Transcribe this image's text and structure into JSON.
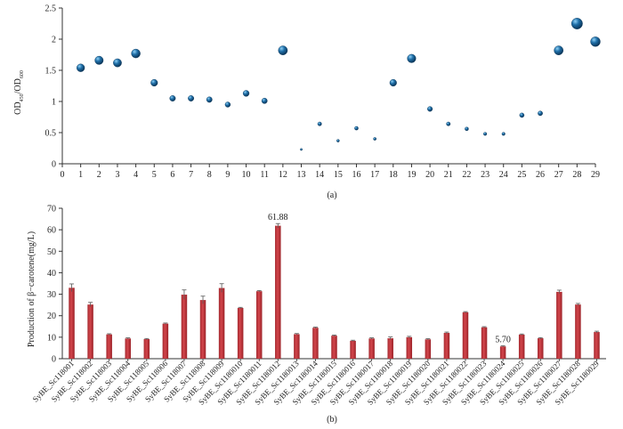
{
  "chart_data": [
    {
      "type": "scatter",
      "panel_label": "(a)",
      "ylabel_main": "OD",
      "ylabel_sub1": "450",
      "ylabel_sep": "/OD",
      "ylabel_sub2": "600",
      "xlabel": "",
      "xlim": [
        0,
        29
      ],
      "ylim": [
        0,
        2.5
      ],
      "x_ticks": [
        "0",
        "1",
        "2",
        "3",
        "4",
        "5",
        "6",
        "7",
        "8",
        "9",
        "10",
        "11",
        "12",
        "13",
        "14",
        "15",
        "16",
        "17",
        "18",
        "19",
        "20",
        "21",
        "22",
        "23",
        "24",
        "25",
        "26",
        "27",
        "28",
        "29"
      ],
      "y_ticks": [
        "0",
        "0.5",
        "1",
        "1.5",
        "2",
        "2.5"
      ],
      "x": [
        1,
        2,
        3,
        4,
        5,
        6,
        7,
        8,
        9,
        10,
        11,
        12,
        13,
        14,
        15,
        16,
        17,
        18,
        19,
        20,
        21,
        22,
        23,
        24,
        25,
        26,
        27,
        28,
        29
      ],
      "y": [
        1.54,
        1.66,
        1.62,
        1.77,
        1.3,
        1.05,
        1.05,
        1.03,
        0.95,
        1.13,
        1.01,
        1.82,
        0.23,
        0.64,
        0.37,
        0.57,
        0.4,
        1.3,
        1.69,
        0.88,
        0.64,
        0.56,
        0.48,
        0.48,
        0.78,
        0.81,
        1.82,
        2.25,
        1.96
      ],
      "marker_color": "#1f6fa8",
      "grid": false
    },
    {
      "type": "bar",
      "panel_label": "(b)",
      "ylabel": "Production of β−carotene(mg/L)",
      "xlabel": "",
      "ylim": [
        0,
        70
      ],
      "y_ticks": [
        "0",
        "10",
        "20",
        "30",
        "40",
        "50",
        "60",
        "70"
      ],
      "categories": [
        "SyBE_Sc118001",
        "SyBE_Sc118002",
        "SyBE_Sc118003",
        "SyBE_Sc118004",
        "SyBE_Sc118005",
        "SyBE_Sc118006",
        "SyBE_Sc118007",
        "SyBE_Sc118008",
        "SyBE_Sc118009",
        "SyBE_Sc1180010",
        "SyBE_Sc1180011",
        "SyBE_Sc1180012",
        "SyBE_Sc1180013",
        "SyBE_Sc1180014",
        "SyBE_Sc1180015",
        "SyBE_Sc1180016",
        "SyBE_Sc1180017",
        "SyBE_Sc1180018",
        "SyBE_Sc1180019",
        "SyBE_Sc1180020",
        "SyBE_Sc1180021",
        "SyBE_Sc1180022",
        "SyBE_Sc1180023",
        "SyBE_Sc1180024",
        "SyBE_Sc1180025",
        "SyBE_Sc1180026",
        "SyBE_Sc1180027",
        "SyBE_Sc1180028",
        "SyBE_Sc1180029"
      ],
      "values": [
        33.0,
        25.2,
        11.3,
        9.4,
        9.1,
        16.3,
        29.8,
        27.3,
        32.9,
        23.6,
        31.4,
        61.88,
        11.4,
        14.4,
        10.7,
        8.3,
        9.4,
        9.5,
        10.0,
        9.0,
        12.0,
        21.6,
        14.6,
        5.7,
        11.2,
        9.5,
        31.1,
        25.2,
        12.4
      ],
      "errors": [
        1.8,
        1.0,
        0.3,
        0.3,
        0.3,
        0.3,
        2.2,
        1.8,
        2.0,
        0.3,
        0.3,
        1.0,
        0.3,
        0.3,
        0.3,
        0.3,
        0.3,
        0.6,
        0.4,
        0.3,
        0.4,
        0.3,
        0.3,
        0.3,
        0.3,
        0.3,
        0.8,
        0.5,
        0.4
      ],
      "annotations": [
        {
          "index": 11,
          "text": "61.88"
        },
        {
          "index": 23,
          "text": "5.70"
        }
      ],
      "bar_color": "#c0343a",
      "grid": false
    }
  ]
}
